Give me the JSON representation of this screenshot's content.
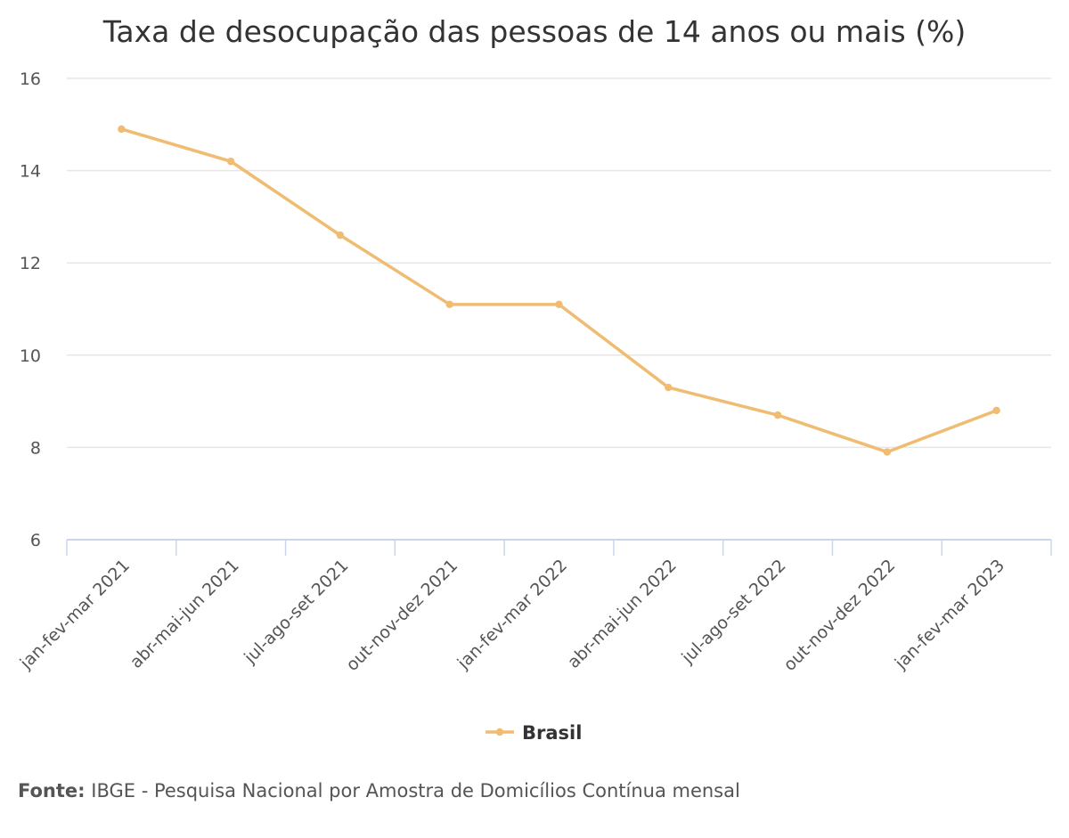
{
  "chart_data": {
    "type": "line",
    "title": "Taxa de desocupação das pessoas de 14 anos ou mais (%)",
    "categories": [
      "jan-fev-mar 2021",
      "abr-mai-jun 2021",
      "jul-ago-set 2021",
      "out-nov-dez 2021",
      "jan-fev-mar 2022",
      "abr-mai-jun 2022",
      "jul-ago-set 2022",
      "out-nov-dez 2022",
      "jan-fev-mar 2023"
    ],
    "series": [
      {
        "name": "Brasil",
        "values": [
          14.9,
          14.2,
          12.6,
          11.1,
          11.1,
          9.3,
          8.7,
          7.9,
          8.8
        ],
        "color": "#efbc72"
      }
    ],
    "ylim": [
      6,
      16
    ],
    "yticks": [
      6,
      8,
      10,
      12,
      14,
      16
    ],
    "grid": true,
    "legend": "bottom-center",
    "colors": {
      "grid": "#e6e6e6",
      "axis": "#ccd6eb",
      "line": "#efbc72"
    }
  },
  "source": {
    "label": "Fonte:",
    "text": "IBGE - Pesquisa Nacional por Amostra de Domicílios Contínua mensal"
  }
}
